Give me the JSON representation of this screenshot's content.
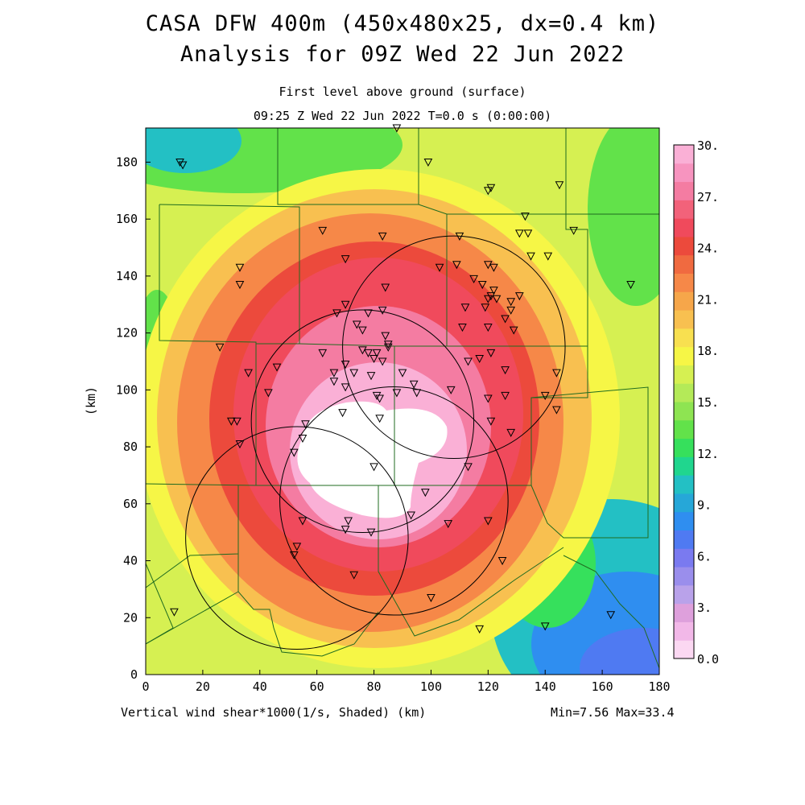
{
  "title_line1": "CASA DFW 400m (450x480x25, dx=0.4 km)",
  "title_line2": "Analysis for 09Z Wed 22 Jun 2022",
  "subtitle_line1": "First level above ground (surface)",
  "subtitle_line2": "09:25 Z Wed 22 Jun 2022   T=0.0 s (0:00:00)",
  "field_label": "Vertical wind shear*1000(1/s, Shaded)  (km)",
  "min_max": "Min=7.56 Max=33.4",
  "axes": {
    "x_ticks": [
      "0",
      "20",
      "40",
      "60",
      "80",
      "100",
      "120",
      "140",
      "160",
      "180"
    ],
    "y_ticks": [
      "0",
      "20",
      "40",
      "60",
      "80",
      "100",
      "120",
      "140",
      "160",
      "180"
    ],
    "y_label": "(km)",
    "x_range_km": [
      0,
      180
    ],
    "y_range_km": [
      0,
      192
    ]
  },
  "colorbar": {
    "labels": [
      "0.0",
      "3.",
      "6.",
      "9.",
      "12.",
      "15.",
      "18.",
      "21.",
      "24.",
      "27.",
      "30."
    ],
    "colors": [
      "#fbd8f2",
      "#f2b8e8",
      "#dea0dc",
      "#b9a2ea",
      "#9a8eec",
      "#7a7af0",
      "#4f7af2",
      "#2f8ef0",
      "#26a7d8",
      "#23c0c4",
      "#20d68e",
      "#36e05c",
      "#62e24a",
      "#8ee452",
      "#b4ea58",
      "#d6f052",
      "#f6f646",
      "#f8e050",
      "#f8c050",
      "#f6a64a",
      "#f68848",
      "#f06a40",
      "#ec4a3c",
      "#f04a5c",
      "#f2627a",
      "#f47ca2",
      "#f794bf",
      "#fab0d6"
    ]
  },
  "radar_circles_km": [
    {
      "cx": 108,
      "cy": 115,
      "r": 39
    },
    {
      "cx": 76,
      "cy": 89,
      "r": 39
    },
    {
      "cx": 87,
      "cy": 61,
      "r": 40
    },
    {
      "cx": 53,
      "cy": 48,
      "r": 39
    }
  ],
  "stations_km": [
    [
      12,
      180
    ],
    [
      13,
      179
    ],
    [
      88,
      192
    ],
    [
      99,
      180
    ],
    [
      120,
      170
    ],
    [
      121,
      171
    ],
    [
      145,
      172
    ],
    [
      133,
      161
    ],
    [
      150,
      156
    ],
    [
      131,
      155
    ],
    [
      134,
      155
    ],
    [
      62,
      156
    ],
    [
      83,
      154
    ],
    [
      110,
      154
    ],
    [
      33,
      143
    ],
    [
      70,
      146
    ],
    [
      135,
      147
    ],
    [
      141,
      147
    ],
    [
      33,
      137
    ],
    [
      103,
      143
    ],
    [
      109,
      144
    ],
    [
      120,
      144
    ],
    [
      122,
      143
    ],
    [
      170,
      137
    ],
    [
      115,
      139
    ],
    [
      118,
      137
    ],
    [
      84,
      136
    ],
    [
      122,
      135
    ],
    [
      121,
      133
    ],
    [
      120,
      132
    ],
    [
      123,
      132
    ],
    [
      128,
      131
    ],
    [
      131,
      133
    ],
    [
      70,
      130
    ],
    [
      67,
      127
    ],
    [
      78,
      127
    ],
    [
      83,
      128
    ],
    [
      112,
      129
    ],
    [
      119,
      129
    ],
    [
      128,
      128
    ],
    [
      74,
      123
    ],
    [
      76,
      121
    ],
    [
      84,
      119
    ],
    [
      126,
      125
    ],
    [
      111,
      122
    ],
    [
      120,
      122
    ],
    [
      129,
      121
    ],
    [
      26,
      115
    ],
    [
      85,
      116
    ],
    [
      76,
      114
    ],
    [
      78,
      113
    ],
    [
      81,
      113
    ],
    [
      85,
      115
    ],
    [
      62,
      113
    ],
    [
      80,
      111
    ],
    [
      83,
      110
    ],
    [
      113,
      110
    ],
    [
      121,
      113
    ],
    [
      117,
      111
    ],
    [
      70,
      109
    ],
    [
      66,
      106
    ],
    [
      73,
      106
    ],
    [
      90,
      106
    ],
    [
      36,
      106
    ],
    [
      126,
      107
    ],
    [
      46,
      108
    ],
    [
      66,
      103
    ],
    [
      79,
      105
    ],
    [
      144,
      106
    ],
    [
      94,
      102
    ],
    [
      95,
      99
    ],
    [
      70,
      101
    ],
    [
      43,
      99
    ],
    [
      88,
      99
    ],
    [
      107,
      100
    ],
    [
      120,
      97
    ],
    [
      126,
      98
    ],
    [
      82,
      97
    ],
    [
      81,
      98
    ],
    [
      140,
      98
    ],
    [
      144,
      93
    ],
    [
      30,
      89
    ],
    [
      32,
      89
    ],
    [
      56,
      88
    ],
    [
      69,
      92
    ],
    [
      82,
      90
    ],
    [
      121,
      89
    ],
    [
      128,
      85
    ],
    [
      55,
      83
    ],
    [
      33,
      81
    ],
    [
      52,
      78
    ],
    [
      113,
      73
    ],
    [
      80,
      73
    ],
    [
      98,
      64
    ],
    [
      55,
      54
    ],
    [
      71,
      54
    ],
    [
      70,
      51
    ],
    [
      79,
      50
    ],
    [
      93,
      56
    ],
    [
      106,
      53
    ],
    [
      120,
      54
    ],
    [
      53,
      45
    ],
    [
      52,
      42
    ],
    [
      125,
      40
    ],
    [
      73,
      35
    ],
    [
      100,
      27
    ],
    [
      140,
      17
    ],
    [
      10,
      22
    ],
    [
      163,
      21
    ],
    [
      117,
      16
    ]
  ],
  "hot_core_peak_km": [
    83,
    78
  ]
}
